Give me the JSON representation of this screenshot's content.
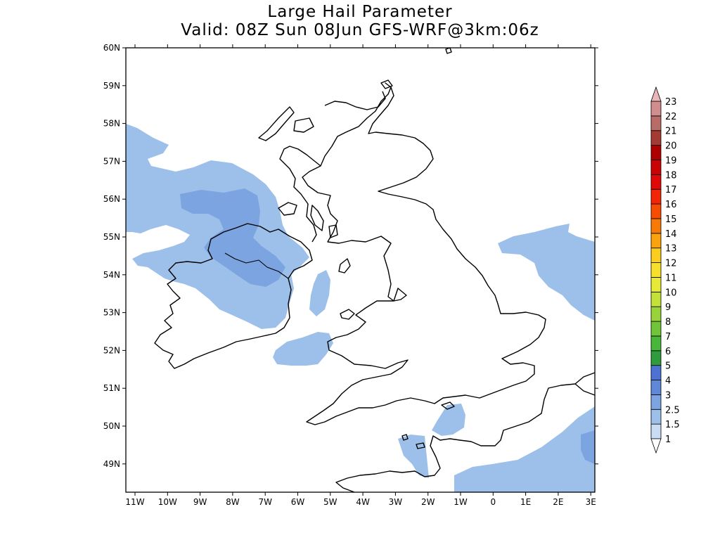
{
  "title": "Large Hail Parameter",
  "subtitle": "Valid: 08Z Sun 08Jun GFS-WRF@3km:06z",
  "map": {
    "lat_labels": [
      "60N",
      "59N",
      "58N",
      "57N",
      "56N",
      "55N",
      "54N",
      "53N",
      "52N",
      "51N",
      "50N",
      "49N"
    ],
    "lon_labels": [
      "11W",
      "10W",
      "9W",
      "8W",
      "7W",
      "6W",
      "5W",
      "4W",
      "3W",
      "2W",
      "1W",
      "0",
      "1E",
      "2E",
      "3E"
    ],
    "lon_range": [
      -11.2,
      3.3
    ],
    "lat_range": [
      48.25,
      60.0
    ]
  },
  "colorbar": {
    "labels": [
      "1",
      "1.5",
      "2.5",
      "3",
      "4",
      "5",
      "6",
      "7",
      "8",
      "9",
      "10",
      "11",
      "12",
      "13",
      "14",
      "15",
      "16",
      "17",
      "18",
      "19",
      "20",
      "21",
      "22",
      "23"
    ],
    "colors": [
      "#c9dcf3",
      "#9dc0ea",
      "#7ba4e1",
      "#5f88d8",
      "#4d72d2",
      "#2f9b3c",
      "#48b63b",
      "#70c43a",
      "#9ad23a",
      "#c4e03b",
      "#e6ea36",
      "#f6e02c",
      "#fbcd1e",
      "#f9a30f",
      "#f77a07",
      "#f64d03",
      "#f22508",
      "#e00808",
      "#c80404",
      "#ae0000",
      "#a33a34",
      "#b86c68",
      "#cf8e8d",
      "#e3b2b3"
    ],
    "over_color": "#e8b6b7",
    "under_color": "#ffffff"
  }
}
